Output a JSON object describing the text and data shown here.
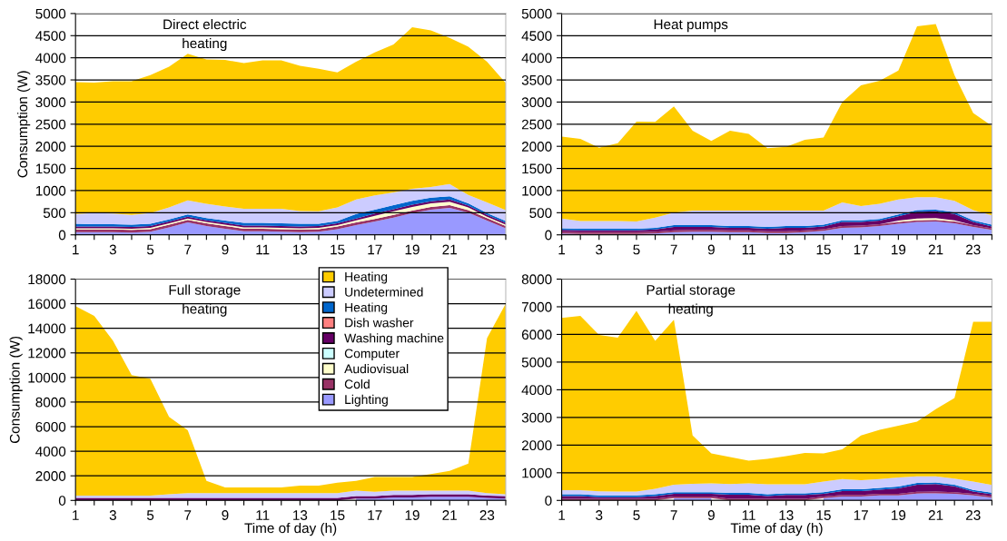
{
  "chart_data": [
    {
      "type": "area",
      "stacked": true,
      "title": "Direct electric\nheating",
      "ylabel": "Consumption (W)",
      "grid": "y",
      "x": [
        1,
        2,
        3,
        4,
        5,
        6,
        7,
        8,
        9,
        10,
        11,
        12,
        13,
        14,
        15,
        16,
        17,
        18,
        19,
        20,
        21,
        22,
        23,
        24
      ],
      "xlim": [
        1,
        24
      ],
      "xticks": [
        1,
        {
          "value": 2,
          "label": null
        },
        3,
        {
          "value": 4,
          "label": null
        },
        5,
        {
          "value": 6,
          "label": null
        },
        7,
        {
          "value": 8,
          "label": null
        },
        9,
        {
          "value": 10,
          "label": null
        },
        11,
        {
          "value": 12,
          "label": null
        },
        13,
        {
          "value": 14,
          "label": null
        },
        15,
        {
          "value": 16,
          "label": null
        },
        17,
        {
          "value": 18,
          "label": null
        },
        19,
        {
          "value": 20,
          "label": null
        },
        21,
        {
          "value": 22,
          "label": null
        },
        23,
        {
          "value": 24,
          "label": null
        }
      ],
      "ylim": [
        0,
        5000
      ],
      "yticks": [
        0,
        500,
        1000,
        1500,
        2000,
        2500,
        3000,
        3500,
        4000,
        4500,
        5000
      ],
      "series": [
        {
          "color": "#9999ff",
          "values": [
            60,
            60,
            60,
            50,
            70,
            170,
            280,
            200,
            140,
            80,
            80,
            70,
            60,
            70,
            130,
            220,
            300,
            390,
            490,
            570,
            610,
            500,
            320,
            150
          ]
        },
        {
          "color": "#993366",
          "values": [
            60,
            60,
            60,
            60,
            60,
            60,
            60,
            60,
            60,
            60,
            60,
            60,
            60,
            60,
            60,
            60,
            60,
            60,
            60,
            60,
            60,
            60,
            60,
            50
          ]
        },
        {
          "color": "#ffffcc",
          "values": [
            30,
            30,
            30,
            30,
            30,
            30,
            30,
            30,
            30,
            30,
            30,
            30,
            30,
            30,
            30,
            50,
            70,
            80,
            80,
            80,
            80,
            60,
            30,
            30
          ]
        },
        {
          "color": "#ccffff",
          "values": [
            null,
            null,
            null,
            null,
            null,
            null,
            null,
            null,
            null,
            null,
            null,
            null,
            null,
            null,
            null,
            null,
            null,
            null,
            null,
            null,
            null,
            null,
            null,
            null
          ]
        },
        {
          "color": "#660066",
          "values": [
            40,
            40,
            40,
            40,
            40,
            40,
            40,
            40,
            40,
            40,
            40,
            40,
            40,
            40,
            40,
            40,
            50,
            50,
            50,
            50,
            50,
            40,
            40,
            40
          ]
        },
        {
          "color": "#ff8080",
          "values": [
            null,
            null,
            null,
            null,
            null,
            null,
            null,
            null,
            null,
            null,
            null,
            null,
            null,
            null,
            null,
            null,
            null,
            null,
            null,
            null,
            null,
            null,
            null,
            null
          ]
        },
        {
          "color": "#0066cc",
          "values": [
            60,
            50,
            50,
            50,
            50,
            50,
            50,
            50,
            50,
            60,
            60,
            60,
            60,
            50,
            50,
            100,
            90,
            90,
            90,
            80,
            70,
            50,
            40,
            40
          ]
        },
        {
          "color": "#ccccff",
          "values": [
            220,
            250,
            240,
            220,
            240,
            270,
            320,
            320,
            320,
            320,
            320,
            330,
            290,
            280,
            310,
            330,
            320,
            290,
            270,
            240,
            280,
            190,
            240,
            250
          ]
        },
        {
          "color": "#ffcc00",
          "values": [
            2980,
            2950,
            2990,
            3020,
            3120,
            3180,
            3310,
            3260,
            3310,
            3290,
            3350,
            3350,
            3280,
            3220,
            3050,
            3110,
            3230,
            3340,
            3650,
            3540,
            3300,
            3350,
            3180,
            2870
          ]
        }
      ]
    },
    {
      "type": "area",
      "stacked": true,
      "title": "Heat pumps",
      "grid": "y",
      "x": [
        1,
        2,
        3,
        4,
        5,
        6,
        7,
        8,
        9,
        10,
        11,
        12,
        13,
        14,
        15,
        16,
        17,
        18,
        19,
        20,
        21,
        22,
        23,
        24
      ],
      "xlim": [
        1,
        24
      ],
      "xticks": [
        1,
        {
          "value": 2,
          "label": null
        },
        3,
        {
          "value": 4,
          "label": null
        },
        5,
        {
          "value": 6,
          "label": null
        },
        7,
        {
          "value": 8,
          "label": null
        },
        9,
        {
          "value": 10,
          "label": null
        },
        11,
        {
          "value": 12,
          "label": null
        },
        13,
        {
          "value": 14,
          "label": null
        },
        15,
        {
          "value": 16,
          "label": null
        },
        17,
        {
          "value": 18,
          "label": null
        },
        19,
        {
          "value": 20,
          "label": null
        },
        21,
        {
          "value": 22,
          "label": null
        },
        23,
        {
          "value": 24,
          "label": null
        }
      ],
      "ylim": [
        0,
        5000
      ],
      "yticks": [
        0,
        500,
        1000,
        1500,
        2000,
        2500,
        3000,
        3500,
        4000,
        4500,
        5000
      ],
      "series": [
        {
          "color": "#9999ff",
          "values": [
            30,
            20,
            20,
            20,
            20,
            30,
            60,
            70,
            70,
            60,
            60,
            40,
            40,
            60,
            90,
            160,
            170,
            200,
            250,
            290,
            300,
            260,
            180,
            110
          ]
        },
        {
          "color": "#993366",
          "values": [
            40,
            40,
            40,
            40,
            40,
            40,
            40,
            40,
            40,
            40,
            40,
            40,
            40,
            40,
            40,
            40,
            40,
            40,
            40,
            40,
            40,
            40,
            40,
            40
          ]
        },
        {
          "color": "#ffffcc",
          "values": [
            null,
            null,
            null,
            null,
            null,
            null,
            null,
            null,
            null,
            null,
            null,
            null,
            null,
            null,
            null,
            null,
            null,
            null,
            30,
            40,
            40,
            30,
            null,
            null
          ]
        },
        {
          "color": "#ccffff",
          "values": [
            null,
            null,
            null,
            null,
            null,
            null,
            null,
            null,
            null,
            null,
            null,
            null,
            null,
            null,
            null,
            null,
            null,
            null,
            null,
            null,
            null,
            null,
            null,
            null
          ]
        },
        {
          "color": "#660066",
          "values": [
            40,
            40,
            40,
            40,
            40,
            50,
            80,
            70,
            70,
            60,
            60,
            60,
            80,
            60,
            60,
            90,
            80,
            80,
            100,
            150,
            150,
            140,
            70,
            40
          ]
        },
        {
          "color": "#ff8080",
          "values": [
            null,
            null,
            null,
            null,
            null,
            null,
            null,
            null,
            null,
            null,
            null,
            null,
            null,
            null,
            null,
            null,
            null,
            null,
            null,
            null,
            null,
            null,
            null,
            null
          ]
        },
        {
          "color": "#0066cc",
          "values": [
            40,
            40,
            40,
            40,
            40,
            40,
            40,
            40,
            40,
            40,
            40,
            40,
            40,
            40,
            40,
            40,
            40,
            40,
            40,
            40,
            40,
            40,
            40,
            40
          ]
        },
        {
          "color": "#ccccff",
          "values": [
            220,
            170,
            170,
            170,
            160,
            230,
            280,
            330,
            330,
            350,
            350,
            370,
            350,
            350,
            320,
            400,
            320,
            340,
            340,
            290,
            280,
            260,
            230,
            210
          ]
        },
        {
          "color": "#ffcc00",
          "values": [
            1850,
            1860,
            1660,
            1760,
            2260,
            2160,
            2400,
            1800,
            1570,
            1800,
            1730,
            1410,
            1440,
            1600,
            1650,
            2270,
            2730,
            2780,
            2910,
            3860,
            3910,
            2840,
            2190,
            2020
          ]
        }
      ]
    },
    {
      "type": "area",
      "stacked": true,
      "title": "Full storage\nheating",
      "ylabel": "Consumption (W)",
      "xlabel": "Time of day (h)",
      "grid": "y",
      "legend": "top right",
      "x": [
        1,
        2,
        3,
        4,
        5,
        6,
        7,
        8,
        9,
        10,
        11,
        12,
        13,
        14,
        15,
        16,
        17,
        18,
        19,
        20,
        21,
        22,
        23,
        24
      ],
      "xlim": [
        1,
        24
      ],
      "xticks": [
        1,
        {
          "value": 2,
          "label": null
        },
        3,
        {
          "value": 4,
          "label": null
        },
        5,
        {
          "value": 6,
          "label": null
        },
        7,
        {
          "value": 8,
          "label": null
        },
        9,
        {
          "value": 10,
          "label": null
        },
        11,
        {
          "value": 12,
          "label": null
        },
        13,
        {
          "value": 14,
          "label": null
        },
        15,
        {
          "value": 16,
          "label": null
        },
        17,
        {
          "value": 18,
          "label": null
        },
        19,
        {
          "value": 20,
          "label": null
        },
        21,
        {
          "value": 22,
          "label": null
        },
        23,
        {
          "value": 24,
          "label": null
        }
      ],
      "ylim": [
        0,
        18000
      ],
      "yticks": [
        0,
        2000,
        4000,
        6000,
        8000,
        10000,
        12000,
        14000,
        16000,
        18000
      ],
      "series": [
        {
          "name": "Lighting",
          "color": "#9999ff",
          "values": [
            null,
            null,
            null,
            null,
            null,
            null,
            null,
            null,
            null,
            null,
            null,
            null,
            null,
            null,
            null,
            150,
            150,
            250,
            250,
            300,
            300,
            300,
            200,
            150
          ]
        },
        {
          "name": "Cold",
          "color": "#993366",
          "values": [
            null,
            null,
            null,
            null,
            null,
            null,
            null,
            null,
            null,
            null,
            null,
            null,
            null,
            null,
            null,
            null,
            null,
            null,
            null,
            null,
            null,
            null,
            null,
            null
          ]
        },
        {
          "name": "Audiovisual",
          "color": "#ffffcc",
          "values": [
            null,
            null,
            null,
            null,
            null,
            null,
            null,
            null,
            null,
            null,
            null,
            null,
            null,
            null,
            null,
            null,
            null,
            null,
            null,
            null,
            null,
            null,
            null,
            null
          ]
        },
        {
          "name": "Computer",
          "color": "#ccffff",
          "values": [
            null,
            null,
            null,
            null,
            null,
            null,
            null,
            null,
            null,
            null,
            null,
            null,
            null,
            null,
            null,
            null,
            null,
            null,
            null,
            null,
            null,
            null,
            null,
            null
          ]
        },
        {
          "name": "Washing machine",
          "color": "#660066",
          "values": [
            200,
            200,
            200,
            200,
            200,
            200,
            200,
            200,
            200,
            200,
            200,
            200,
            200,
            200,
            200,
            200,
            200,
            200,
            200,
            200,
            200,
            200,
            200,
            200
          ]
        },
        {
          "name": "Dish washer",
          "color": "#ff8080",
          "values": [
            null,
            null,
            null,
            null,
            null,
            null,
            null,
            null,
            null,
            null,
            null,
            null,
            null,
            null,
            null,
            null,
            null,
            null,
            null,
            null,
            null,
            null,
            null,
            null
          ]
        },
        {
          "name": "Heating",
          "color": "#0066cc",
          "values": [
            null,
            null,
            null,
            null,
            null,
            null,
            null,
            null,
            null,
            null,
            null,
            null,
            null,
            null,
            null,
            null,
            null,
            null,
            null,
            null,
            null,
            null,
            null,
            null
          ]
        },
        {
          "name": "Undetermined",
          "color": "#ccccff",
          "values": [
            200,
            200,
            200,
            200,
            200,
            300,
            400,
            400,
            400,
            400,
            400,
            400,
            400,
            400,
            400,
            450,
            350,
            350,
            350,
            300,
            300,
            300,
            200,
            150
          ]
        },
        {
          "name": "Heating",
          "color": "#ffcc00",
          "values": [
            15400,
            14600,
            12600,
            9800,
            9500,
            6300,
            5100,
            1000,
            450,
            450,
            450,
            450,
            600,
            600,
            850,
            800,
            1200,
            1100,
            1100,
            1350,
            1600,
            2200,
            12600,
            15500
          ]
        }
      ]
    },
    {
      "type": "area",
      "stacked": true,
      "title": "Partial storage\nheating",
      "xlabel": "Time of day (h)",
      "grid": "y",
      "x": [
        1,
        2,
        3,
        4,
        5,
        6,
        7,
        8,
        9,
        10,
        11,
        12,
        13,
        14,
        15,
        16,
        17,
        18,
        19,
        20,
        21,
        22,
        23,
        24
      ],
      "xlim": [
        1,
        24
      ],
      "xticks": [
        1,
        {
          "value": 2,
          "label": null
        },
        3,
        {
          "value": 4,
          "label": null
        },
        5,
        {
          "value": 6,
          "label": null
        },
        7,
        {
          "value": 8,
          "label": null
        },
        9,
        {
          "value": 10,
          "label": null
        },
        11,
        {
          "value": 12,
          "label": null
        },
        13,
        {
          "value": 14,
          "label": null
        },
        15,
        {
          "value": 16,
          "label": null
        },
        17,
        {
          "value": 18,
          "label": null
        },
        19,
        {
          "value": 20,
          "label": null
        },
        21,
        {
          "value": 22,
          "label": null
        },
        23,
        {
          "value": 24,
          "label": null
        }
      ],
      "ylim": [
        0,
        8000
      ],
      "yticks": [
        0,
        1000,
        2000,
        3000,
        4000,
        5000,
        6000,
        7000,
        8000
      ],
      "series": [
        {
          "color": "#9999ff",
          "values": [
            null,
            null,
            null,
            null,
            null,
            null,
            80,
            80,
            80,
            null,
            null,
            null,
            null,
            null,
            80,
            140,
            140,
            180,
            180,
            250,
            260,
            240,
            180,
            100
          ]
        },
        {
          "color": "#993366",
          "values": [
            60,
            60,
            60,
            60,
            60,
            60,
            60,
            60,
            60,
            60,
            60,
            60,
            60,
            60,
            60,
            60,
            60,
            60,
            60,
            60,
            60,
            60,
            60,
            60
          ]
        },
        {
          "color": "#ffffcc",
          "values": [
            null,
            null,
            null,
            null,
            null,
            null,
            null,
            null,
            null,
            null,
            null,
            null,
            null,
            null,
            null,
            null,
            null,
            null,
            null,
            null,
            null,
            null,
            null,
            null
          ]
        },
        {
          "color": "#ccffff",
          "values": [
            null,
            null,
            null,
            null,
            null,
            null,
            null,
            null,
            null,
            null,
            null,
            null,
            null,
            null,
            null,
            null,
            null,
            null,
            null,
            null,
            null,
            null,
            null,
            null
          ]
        },
        {
          "color": "#660066",
          "values": [
            100,
            100,
            60,
            60,
            60,
            100,
            100,
            100,
            100,
            150,
            150,
            100,
            140,
            140,
            100,
            140,
            140,
            150,
            200,
            260,
            270,
            210,
            80,
            60
          ]
        },
        {
          "color": "#ff8080",
          "values": [
            null,
            null,
            null,
            null,
            null,
            null,
            null,
            null,
            null,
            null,
            null,
            null,
            null,
            null,
            null,
            null,
            null,
            null,
            null,
            null,
            null,
            null,
            null,
            null
          ]
        },
        {
          "color": "#0066cc",
          "values": [
            60,
            60,
            60,
            60,
            60,
            60,
            60,
            60,
            60,
            60,
            60,
            60,
            60,
            60,
            60,
            60,
            60,
            60,
            60,
            60,
            60,
            60,
            60,
            60
          ]
        },
        {
          "color": "#ccccff",
          "values": [
            150,
            150,
            150,
            140,
            140,
            200,
            270,
            300,
            320,
            320,
            350,
            360,
            320,
            320,
            380,
            370,
            330,
            320,
            330,
            240,
            220,
            220,
            300,
            280
          ]
        },
        {
          "color": "#ffcc00",
          "values": [
            6230,
            6300,
            5650,
            5560,
            6530,
            5350,
            5960,
            1750,
            1080,
            980,
            820,
            920,
            1020,
            1140,
            1020,
            1080,
            1620,
            1780,
            1870,
            1980,
            2430,
            2910,
            5780,
            5900
          ]
        }
      ]
    }
  ]
}
